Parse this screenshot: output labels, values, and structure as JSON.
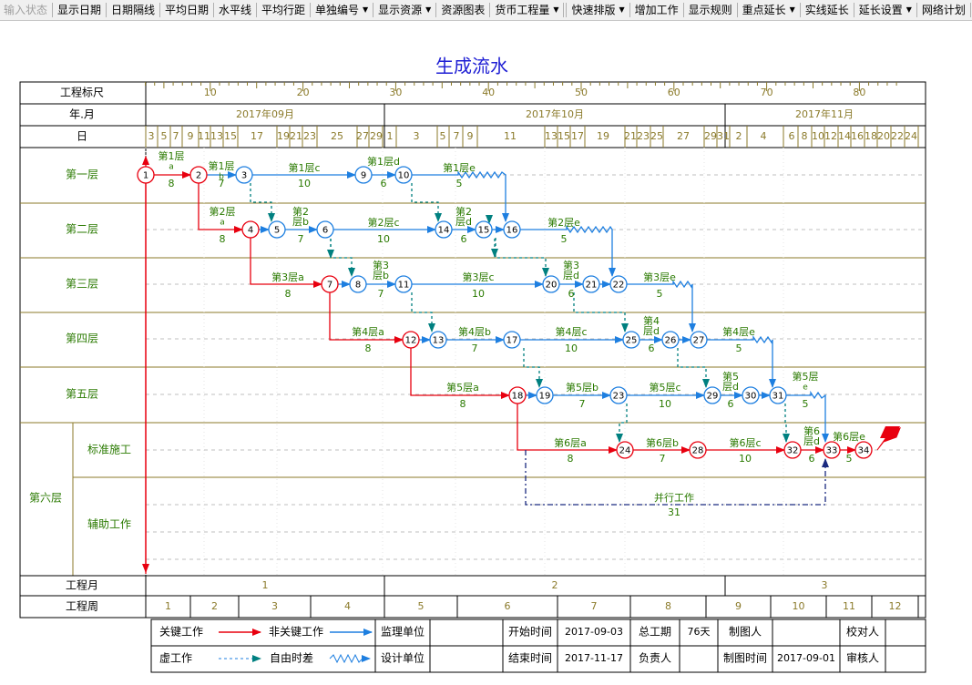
{
  "toolbar": [
    {
      "label": "输入状态",
      "disabled": true
    },
    {
      "label": "显示日期"
    },
    {
      "label": "日期隔线"
    },
    {
      "label": "平均日期"
    },
    {
      "label": "水平线"
    },
    {
      "label": "平均行距"
    },
    {
      "label": "单独编号",
      "dropdown": true
    },
    {
      "label": "显示资源",
      "dropdown": true
    },
    {
      "label": "资源图表"
    },
    {
      "label": "货币工程量",
      "dropdown": true
    },
    {
      "sep": true
    },
    {
      "label": "快速排版",
      "dropdown": true
    },
    {
      "label": "增加工作"
    },
    {
      "label": "显示规则"
    },
    {
      "label": "重点延长",
      "dropdown": true
    },
    {
      "label": "实线延长"
    },
    {
      "label": "延长设置",
      "dropdown": true
    },
    {
      "label": "网络计划"
    }
  ],
  "title": "生成流水",
  "header_rows": {
    "ruler_label": "工程标尺",
    "month_label": "年.月",
    "day_label": "日",
    "ruler_ticks": [
      "10",
      "20",
      "30",
      "40",
      "50",
      "60",
      "70",
      "80"
    ],
    "months": [
      "2017年09月",
      "2017年10月",
      "2017年11月"
    ],
    "days": [
      "3",
      "5",
      "7",
      "9",
      "11",
      "13",
      "15",
      "17",
      "19",
      "21",
      "23",
      "25",
      "27",
      "29",
      "1",
      "3",
      "5",
      "7",
      "9",
      "11",
      "13",
      "15",
      "17",
      "19",
      "21",
      "23",
      "25",
      "27",
      "29",
      "31",
      "2",
      "4",
      "6",
      "8",
      "10",
      "12",
      "14",
      "16",
      "18",
      "20",
      "22",
      "24"
    ]
  },
  "rows": [
    {
      "label": "第一层"
    },
    {
      "label": "第二层"
    },
    {
      "label": "第三层"
    },
    {
      "label": "第四层"
    },
    {
      "label": "第五层"
    },
    {
      "label": "第六层",
      "sub": [
        "标准施工",
        "辅助工作"
      ]
    }
  ],
  "nodes": [
    "1",
    "2",
    "3",
    "4",
    "5",
    "6",
    "7",
    "8",
    "9",
    "10",
    "11",
    "12",
    "13",
    "14",
    "15",
    "16",
    "17",
    "18",
    "19",
    "20",
    "21",
    "22",
    "23",
    "24",
    "25",
    "26",
    "27",
    "28",
    "29",
    "30",
    "31",
    "32",
    "33",
    "34"
  ],
  "activities": {
    "c1a": {
      "name": "第1层",
      "sub": "a",
      "dur": "8"
    },
    "c1b": {
      "name": "第1层",
      "sub": "b",
      "dur": "7"
    },
    "c1c": {
      "name": "第1层c",
      "dur": "10"
    },
    "c1d": {
      "name": "第1层d",
      "dur": "6"
    },
    "c1e": {
      "name": "第1层e",
      "dur": "5"
    },
    "c2a": {
      "name": "第2层",
      "sub": "a",
      "dur": "8"
    },
    "c2b": {
      "name": "第2",
      "sub2": "层b",
      "dur": "7"
    },
    "c2c": {
      "name": "第2层c",
      "dur": "10"
    },
    "c2d": {
      "name": "第2",
      "sub2": "层d",
      "dur": "6"
    },
    "c2e": {
      "name": "第2层e",
      "dur": "5"
    },
    "c3a": {
      "name": "第3层a",
      "dur": "8"
    },
    "c3b": {
      "name": "第3",
      "sub2": "层b",
      "dur": "7"
    },
    "c3c": {
      "name": "第3层c",
      "dur": "10"
    },
    "c3d": {
      "name": "第3",
      "sub2": "层d",
      "dur": "6"
    },
    "c3e": {
      "name": "第3层e",
      "dur": "5"
    },
    "c4a": {
      "name": "第4层a",
      "dur": "8"
    },
    "c4b": {
      "name": "第4层b",
      "dur": "7"
    },
    "c4c": {
      "name": "第4层c",
      "dur": "10"
    },
    "c4d": {
      "name": "第4",
      "sub2": "层d",
      "dur": "6"
    },
    "c4e": {
      "name": "第4层e",
      "dur": "5"
    },
    "c5a": {
      "name": "第5层a",
      "dur": "8"
    },
    "c5b": {
      "name": "第5层b",
      "dur": "7"
    },
    "c5c": {
      "name": "第5层c",
      "dur": "10"
    },
    "c5d": {
      "name": "第5",
      "sub2": "层d",
      "dur": "6"
    },
    "c5e": {
      "name": "第5层",
      "sub": "e",
      "dur": "5"
    },
    "c6a": {
      "name": "第6层a",
      "dur": "8"
    },
    "c6b": {
      "name": "第6层b",
      "dur": "7"
    },
    "c6c": {
      "name": "第6层c",
      "dur": "10"
    },
    "c6d": {
      "name": "第6",
      "sub2": "层d",
      "dur": "6"
    },
    "c6e": {
      "name": "第6层e",
      "dur": "5"
    },
    "par": {
      "name": "并行工作",
      "dur": "31"
    }
  },
  "bottom": {
    "month_label": "工程月",
    "months": [
      "1",
      "2",
      "3"
    ],
    "week_label": "工程周",
    "weeks": [
      "1",
      "2",
      "3",
      "4",
      "5",
      "6",
      "7",
      "8",
      "9",
      "10",
      "11",
      "12"
    ]
  },
  "legend": {
    "critical": "关键工作",
    "noncritical": "非关键工作",
    "dummy": "虚工作",
    "float": "自由时差",
    "supervisor": "监理单位",
    "designer": "设计单位",
    "start_label": "开始时间",
    "start_value": "2017-09-03",
    "end_label": "结束时间",
    "end_value": "2017-11-17",
    "total_label": "总工期",
    "total_value": "76天",
    "owner_label": "负责人",
    "drawer_label": "制图人",
    "draw_time_label": "制图时间",
    "draw_time_value": "2017-09-01",
    "checker_label": "校对人",
    "reviewer_label": "审核人"
  },
  "colors": {
    "critical": "#e8000f",
    "noncritical": "#1e7fe0",
    "dummy": "#1e7fe0",
    "float": "#008080",
    "grid": "#8b7a2a",
    "label": "#2a7a00",
    "title": "#1f1fd4",
    "ruler": "#8b7a2a"
  }
}
